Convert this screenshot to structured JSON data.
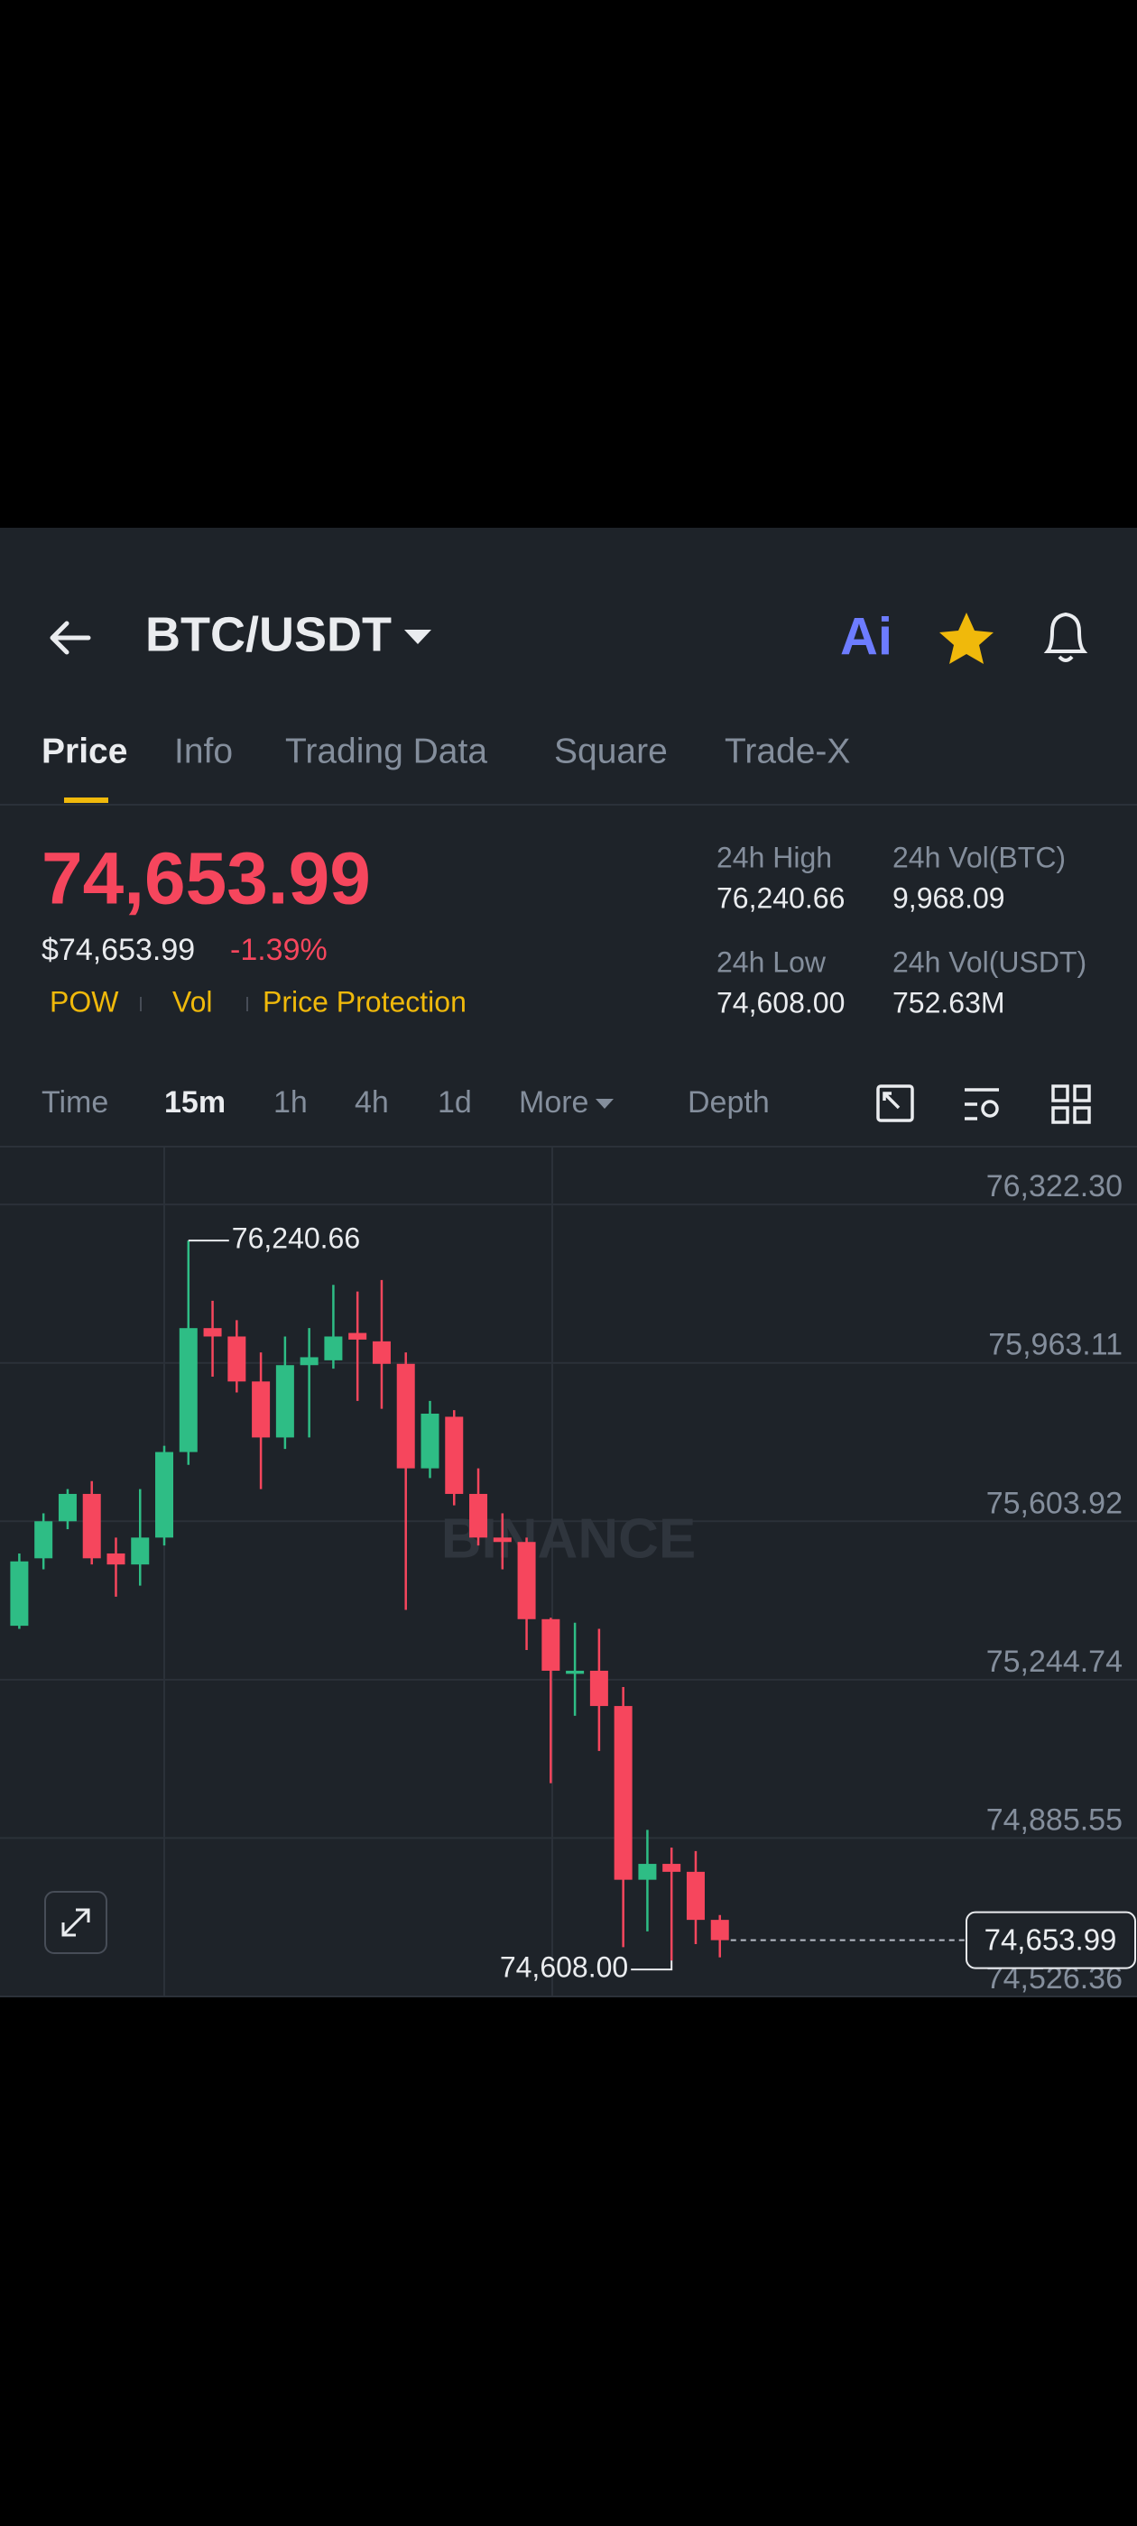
{
  "header": {
    "pair": "BTC/USDT",
    "ai": "Ai"
  },
  "tabs": [
    "Price",
    "Info",
    "Trading Data",
    "Square",
    "Trade-X"
  ],
  "price": {
    "last": "74,653.99",
    "usd": "$74,653.99",
    "change": "-1.39%",
    "tags": [
      "POW",
      "Vol",
      "Price Protection"
    ]
  },
  "stats": [
    {
      "label": "24h High",
      "value": "76,240.66"
    },
    {
      "label": "24h Vol(BTC)",
      "value": "9,968.09"
    },
    {
      "label": "24h Low",
      "value": "74,608.00"
    },
    {
      "label": "24h Vol(USDT)",
      "value": "752.63M"
    }
  ],
  "intervals": [
    "Time",
    "15m",
    "1h",
    "4h",
    "1d",
    "More",
    "Depth"
  ],
  "chart_data": {
    "type": "candlestick",
    "watermark": "BINANCE",
    "up_color": "#2ebd85",
    "down_color": "#f6465d",
    "open": [
      75367,
      75520,
      75604,
      75666,
      75531,
      75506,
      75567,
      75761,
      76042,
      76023,
      75921,
      75794,
      75958,
      75969,
      76031,
      76012,
      75961,
      75724,
      75841,
      75666,
      75567,
      75557,
      75382,
      75258,
      75265,
      75185,
      74791,
      74827,
      74809,
      74700
    ],
    "high": [
      75531,
      75622,
      75677,
      75695,
      75567,
      75677,
      75775,
      76240.66,
      76104,
      76060,
      75987,
      76023,
      76042,
      76140,
      76125,
      76151,
      75987,
      75877,
      75856,
      75724,
      75622,
      75567,
      75385,
      75374,
      75360,
      75228,
      74904,
      74864,
      74856,
      74711
    ],
    "low": [
      75360,
      75495,
      75586,
      75506,
      75433,
      75458,
      75549,
      75732,
      75932,
      75896,
      75677,
      75768,
      75794,
      75950,
      75877,
      75859,
      75403,
      75702,
      75640,
      75549,
      75495,
      75312,
      75010,
      75163,
      75083,
      74638,
      74674,
      74608.0,
      74645,
      74615
    ],
    "close": [
      75513,
      75604,
      75666,
      75520,
      75506,
      75567,
      75761,
      76042,
      76023,
      75921,
      75794,
      75958,
      75976,
      76023,
      76016,
      75961,
      75724,
      75848,
      75666,
      75567,
      75557,
      75382,
      75265,
      75265,
      75185,
      74791,
      74827,
      74809,
      74700,
      74653.99
    ],
    "ylim": [
      74526.36,
      76453.6
    ],
    "yticks": [
      {
        "value": 74526.36,
        "label": "74,526.36"
      },
      {
        "value": 74885.55,
        "label": "74,885.55"
      },
      {
        "value": 75244.74,
        "label": "75,244.74"
      },
      {
        "value": 75603.92,
        "label": "75,603.92"
      },
      {
        "value": 75963.11,
        "label": "75,963.11"
      },
      {
        "value": 76322.3,
        "label": "76,322.30"
      }
    ],
    "high_marker": {
      "value": 76240.66,
      "label": "76,240.66"
    },
    "low_marker": {
      "value": 74608.0,
      "label": "74,608.00"
    },
    "last_price": {
      "value": 74653.99,
      "label": "74,653.99"
    }
  }
}
